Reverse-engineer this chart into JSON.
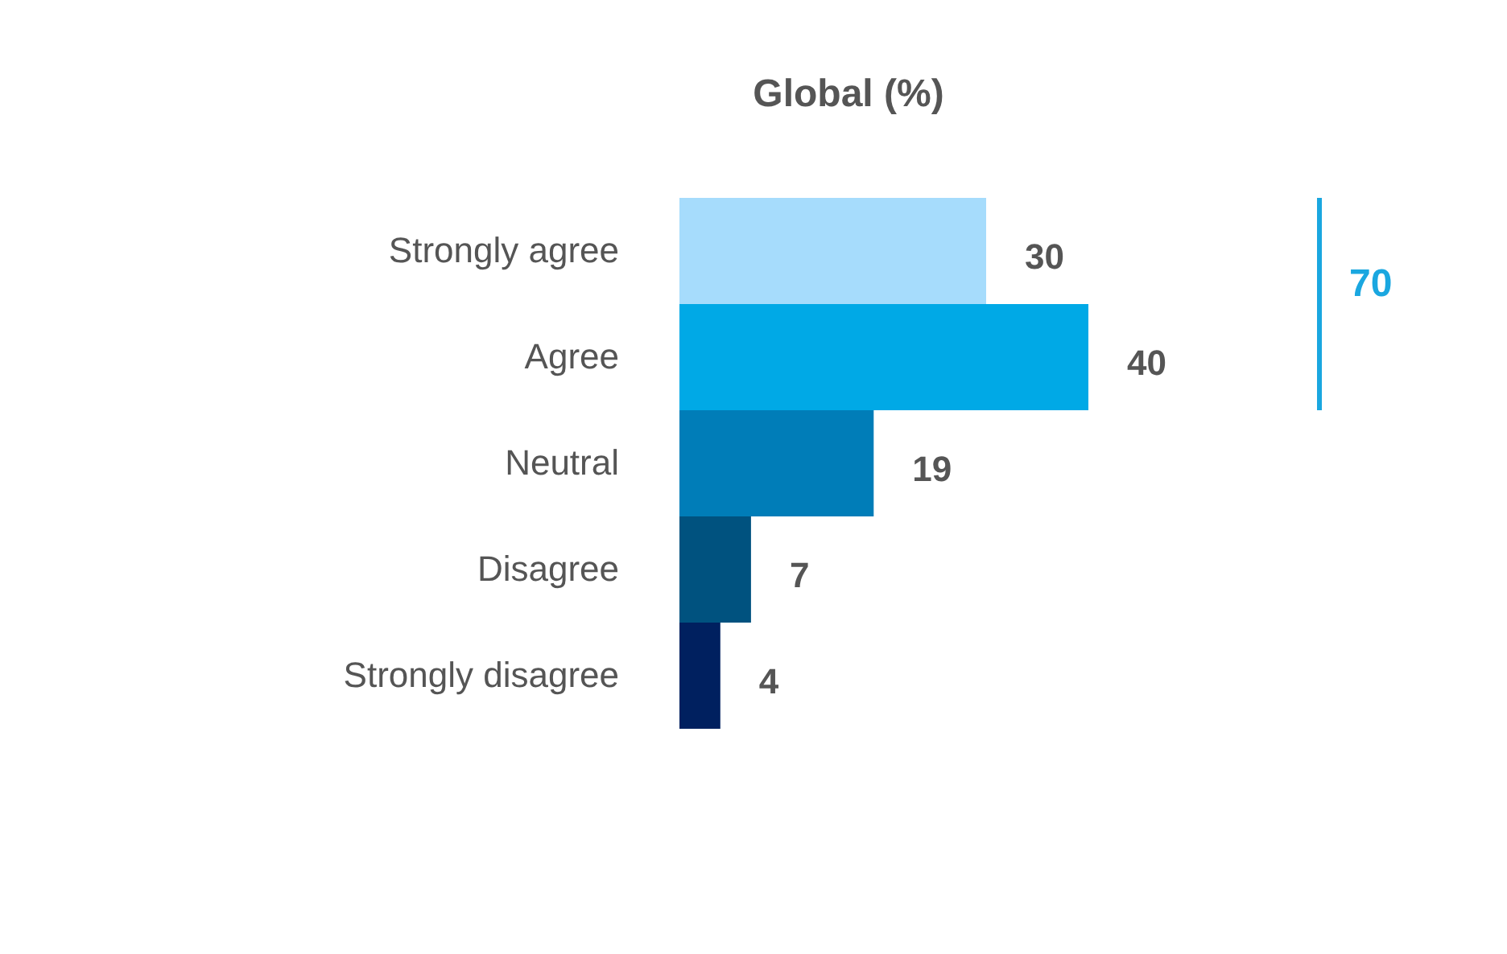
{
  "chart_data": {
    "type": "bar",
    "orientation": "horizontal",
    "title": "Global (%)",
    "categories": [
      "Strongly agree",
      "Agree",
      "Neutral",
      "Disagree",
      "Strongly disagree"
    ],
    "values": [
      30,
      40,
      19,
      7,
      4
    ],
    "colors": [
      "#a6dcfc",
      "#00a9e6",
      "#007db8",
      "#00527f",
      "#00205f"
    ],
    "data_labels": true,
    "annotations": [
      "70"
    ]
  }
}
